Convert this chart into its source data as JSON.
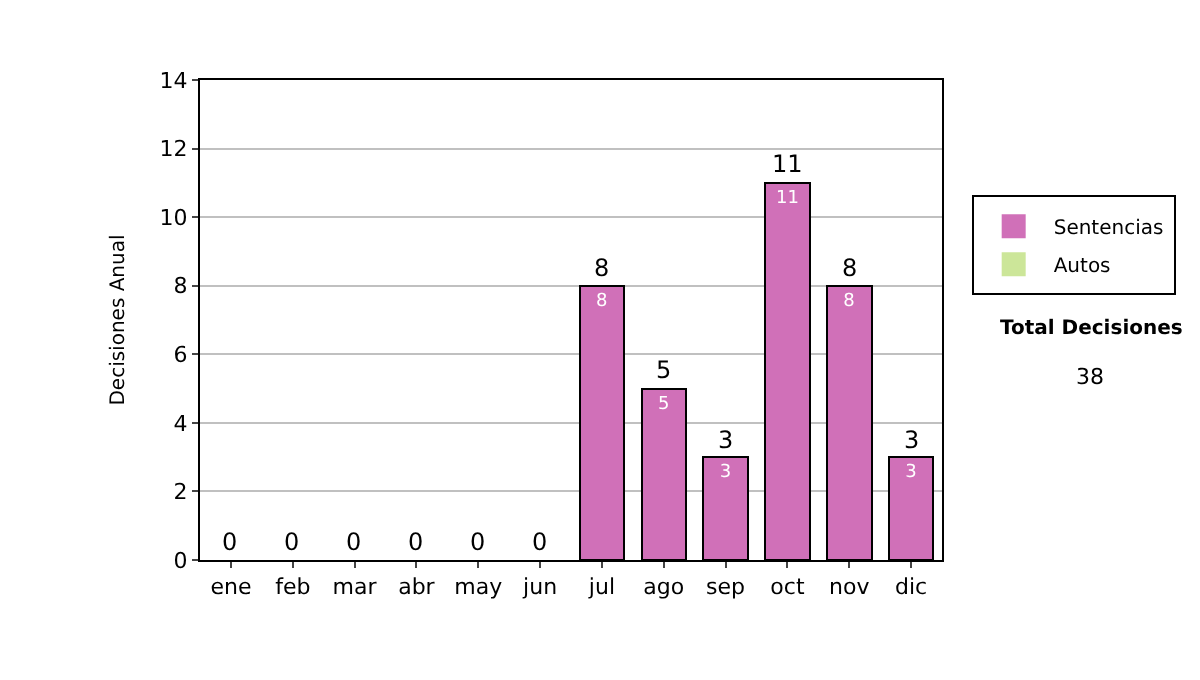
{
  "chart_data": {
    "type": "bar",
    "stacked": true,
    "ylabel": "Decisiones Anual",
    "categories": [
      "ene",
      "feb",
      "mar",
      "abr",
      "may",
      "jun",
      "jul",
      "ago",
      "sep",
      "oct",
      "nov",
      "dic"
    ],
    "series": [
      {
        "name": "Sentencias",
        "color": "#d070b8",
        "values": [
          0,
          0,
          0,
          0,
          0,
          0,
          8,
          5,
          3,
          11,
          8,
          3
        ],
        "value_labels": [
          null,
          null,
          null,
          null,
          null,
          null,
          "8",
          "5",
          "3",
          "11",
          "8",
          "3"
        ]
      },
      {
        "name": "Autos",
        "color": "#cce699",
        "values": [
          0,
          0,
          0,
          0,
          0,
          0,
          0,
          0,
          0,
          0,
          0,
          0
        ]
      }
    ],
    "totals": [
      "0",
      "0",
      "0",
      "0",
      "0",
      "0",
      "8",
      "5",
      "3",
      "11",
      "8",
      "3"
    ],
    "ylim": [
      0,
      14
    ],
    "yticks": [
      0,
      2,
      4,
      6,
      8,
      10,
      12,
      14
    ],
    "grid": "y",
    "legend": "right",
    "annotations": [
      "Total Decisiones",
      "38"
    ]
  }
}
